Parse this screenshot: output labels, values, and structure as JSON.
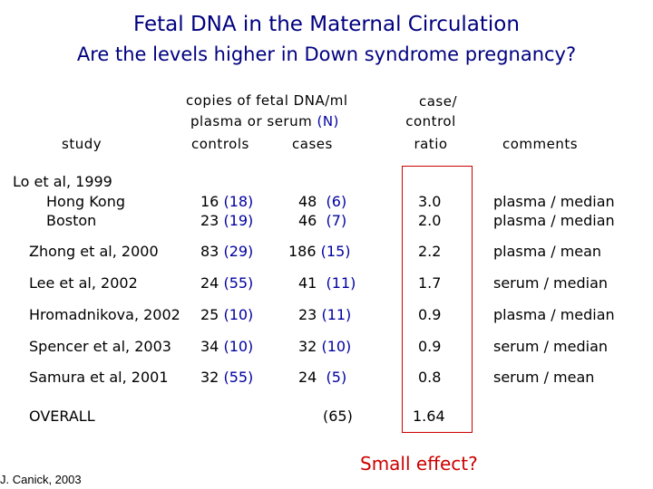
{
  "title": "Fetal DNA in the Maternal Circulation",
  "subtitle": "Are the levels higher in Down syndrome pregnancy?",
  "header": {
    "study": "study",
    "copies_line1": "copies of fetal DNA/ml",
    "copies_line2_prefix": "plasma or serum ",
    "copies_line2_n": "(N)",
    "controls": "controls",
    "cases": "cases",
    "ratio_line1": "case/",
    "ratio_line2": "control",
    "ratio_line3": "ratio",
    "comments": "comments"
  },
  "rows": [
    {
      "study_lines": [
        "Lo et al, 1999",
        "Hong Kong",
        "Boston"
      ],
      "controls": [
        {
          "v": "16",
          "n": "(18)"
        },
        {
          "v": "23",
          "n": "(19)"
        }
      ],
      "cases": [
        {
          "v": "48",
          "n": "(6)"
        },
        {
          "v": "46",
          "n": "(7)"
        }
      ],
      "ratios": [
        "3.0",
        "2.0"
      ],
      "comments": [
        "plasma / median",
        "plasma / median"
      ]
    },
    {
      "study": "Zhong et al, 2000",
      "ctrl_v": "83",
      "ctrl_n": "(29)",
      "case_v": "186",
      "case_n": "(15)",
      "ratio": "2.2",
      "comment": "plasma / mean"
    },
    {
      "study": "Lee et al, 2002",
      "ctrl_v": "24",
      "ctrl_n": "(55)",
      "case_v": "41",
      "case_n": "(11)",
      "ratio": "1.7",
      "comment": "serum / median"
    },
    {
      "study": "Hromadnikova, 2002",
      "ctrl_v": "25",
      "ctrl_n": "(10)",
      "case_v": "23",
      "case_n": "(11)",
      "ratio": "0.9",
      "comment": "plasma / median"
    },
    {
      "study": "Spencer et al, 2003",
      "ctrl_v": "34",
      "ctrl_n": "(10)",
      "case_v": "32",
      "case_n": "(10)",
      "ratio": "0.9",
      "comment": "serum / median"
    },
    {
      "study": "Samura et al, 2001",
      "ctrl_v": "32",
      "ctrl_n": "(55)",
      "case_v": "24",
      "case_n": "(5)",
      "ratio": "0.8",
      "comment": "serum / mean"
    }
  ],
  "overall": {
    "label": "OVERALL",
    "cases_n": "(65)",
    "ratio": "1.64"
  },
  "note": "Small effect?",
  "credit": "J. Canick, 2003",
  "colors": {
    "title": "#000080",
    "n_values": "#0000a0",
    "highlight": "#cc0000"
  }
}
